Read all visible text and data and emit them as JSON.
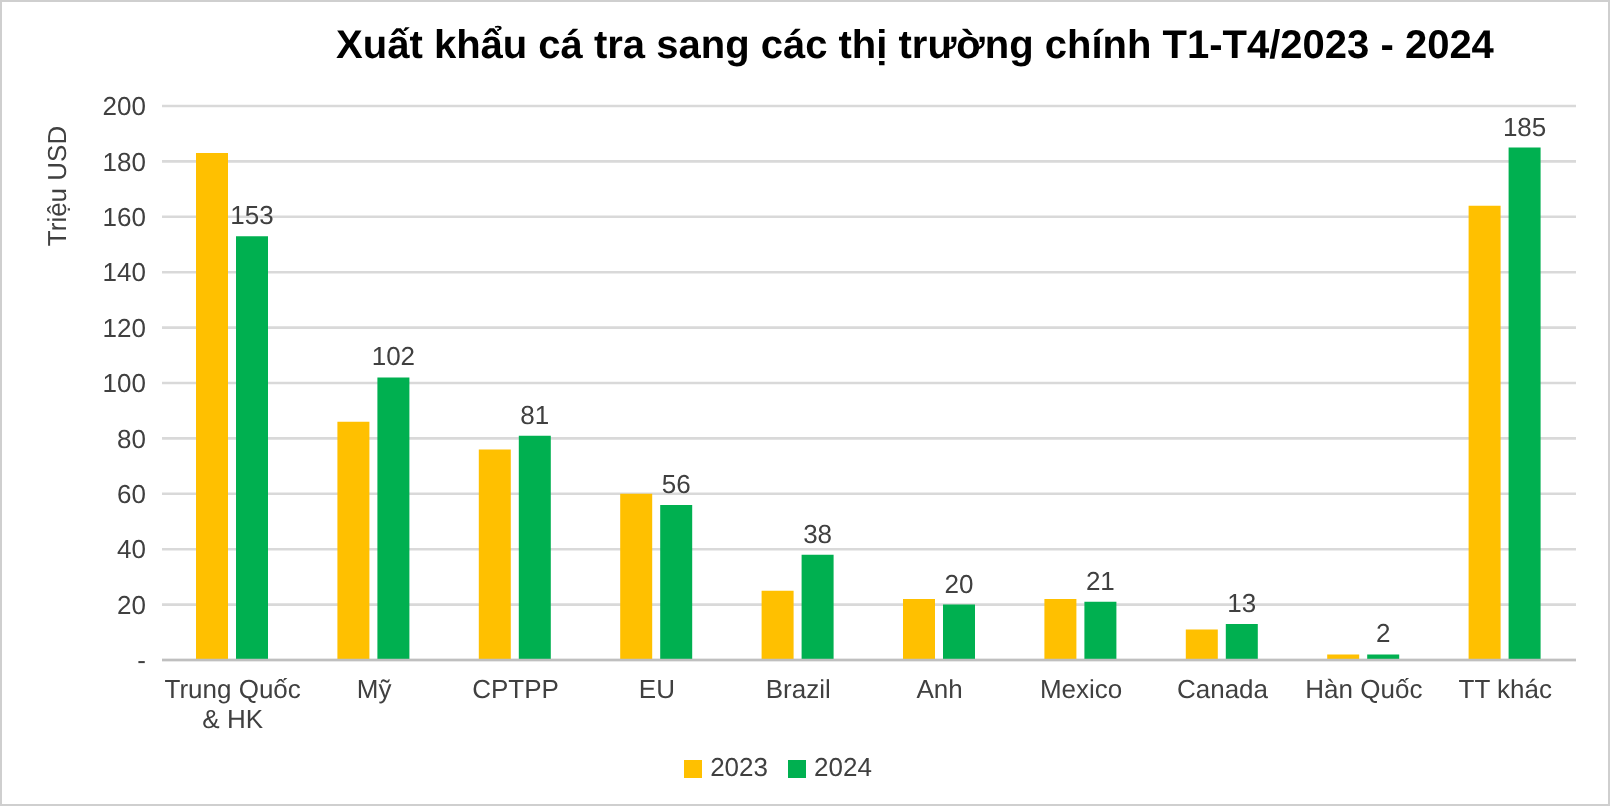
{
  "chart_data": {
    "type": "bar",
    "title": "Xuất khẩu cá tra sang các thị trường chính T1-T4/2023 - 2024",
    "ylabel": "Triệu USD",
    "categories": [
      "Trung Quốc & HK",
      "Mỹ",
      "CPTPP",
      "EU",
      "Brazil",
      "Anh",
      "Mexico",
      "Canada",
      "Hàn Quốc",
      "TT khác"
    ],
    "series": [
      {
        "name": "2023",
        "color": "#ffc000",
        "values": [
          183,
          86,
          76,
          60,
          25,
          22,
          22,
          11,
          2,
          164
        ]
      },
      {
        "name": "2024",
        "color": "#00b050",
        "values": [
          153,
          102,
          81,
          56,
          38,
          20,
          21,
          13,
          2,
          185
        ],
        "value_labels": [
          "153",
          "102",
          "81",
          "56",
          "38",
          "20",
          "21",
          "13",
          "2",
          "185"
        ]
      }
    ],
    "ylim": [
      0,
      200
    ],
    "yticks": [
      {
        "value": 0,
        "label": "-"
      },
      20,
      40,
      60,
      80,
      100,
      120,
      140,
      160,
      180,
      200
    ],
    "grid": "y",
    "legend": "bottom"
  }
}
